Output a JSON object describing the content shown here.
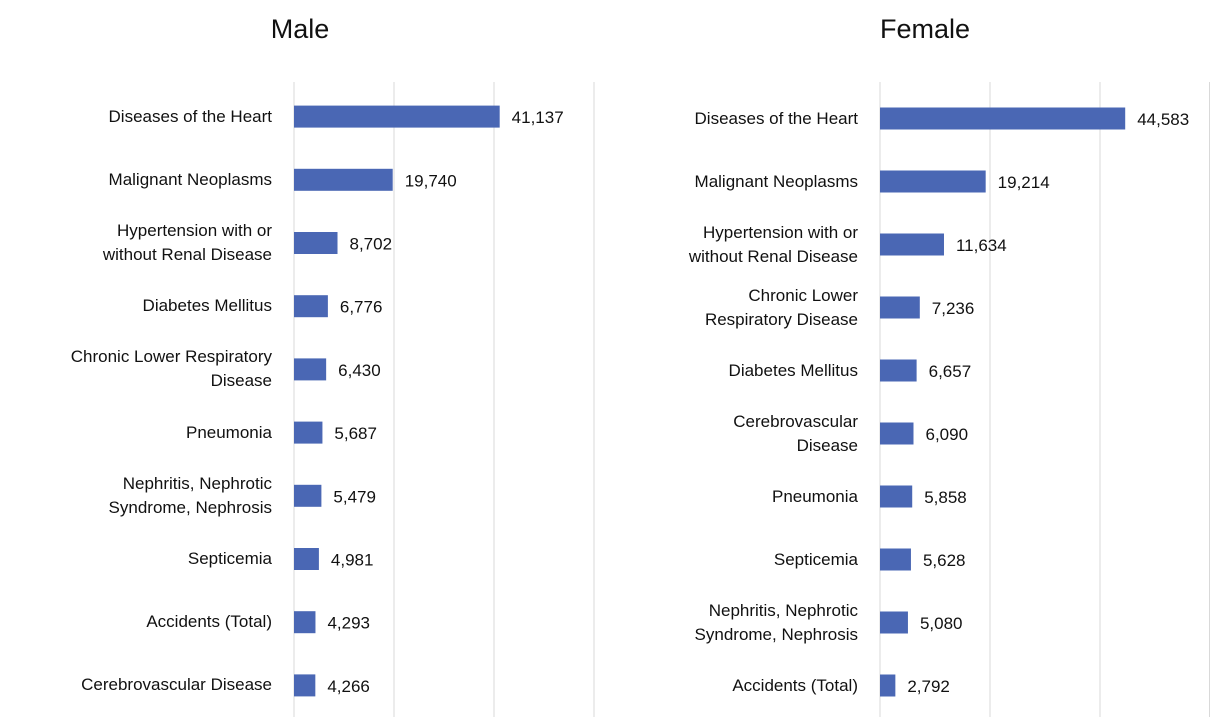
{
  "chart_data": [
    {
      "type": "hbar",
      "title": "Male",
      "color": "#4a67b4",
      "categories": [
        "Diseases of the Heart",
        "Malignant Neoplasms",
        "Hypertension with or\nwithout Renal Disease",
        "Diabetes Mellitus",
        "Chronic Lower Respiratory\nDisease",
        "Pneumonia",
        "Nephritis, Nephrotic\nSyndrome, Nephrosis",
        "Septicemia",
        "Accidents (Total)",
        "Cerebrovascular Disease"
      ],
      "values": [
        41137,
        19740,
        8702,
        6776,
        6430,
        5687,
        5479,
        4981,
        4293,
        4266
      ],
      "value_labels": [
        "41,137",
        "19,740",
        "8,702",
        "6,776",
        "6,430",
        "5,687",
        "5,479",
        "4,981",
        "4,293",
        "4,266"
      ],
      "xlim": [
        0,
        60000
      ],
      "xticks": [
        0,
        20000,
        40000,
        60000
      ],
      "grid": true
    },
    {
      "type": "hbar",
      "title": "Female",
      "color": "#4a67b4",
      "categories": [
        "Diseases of the Heart",
        "Malignant Neoplasms",
        "Hypertension with or\nwithout Renal Disease",
        "Chronic Lower\nRespiratory Disease",
        "Diabetes Mellitus",
        "Cerebrovascular\nDisease",
        "Pneumonia",
        "Septicemia",
        "Nephritis, Nephrotic\nSyndrome, Nephrosis",
        "Accidents (Total)"
      ],
      "values": [
        44583,
        19214,
        11634,
        7236,
        6657,
        6090,
        5858,
        5628,
        5080,
        2792
      ],
      "value_labels": [
        "44,583",
        "19,214",
        "11,634",
        "7,236",
        "6,657",
        "6,090",
        "5,858",
        "5,628",
        "5,080",
        "2,792"
      ],
      "xlim": [
        0,
        60000
      ],
      "xticks": [
        0,
        20000,
        40000,
        60000
      ],
      "grid": true
    }
  ]
}
